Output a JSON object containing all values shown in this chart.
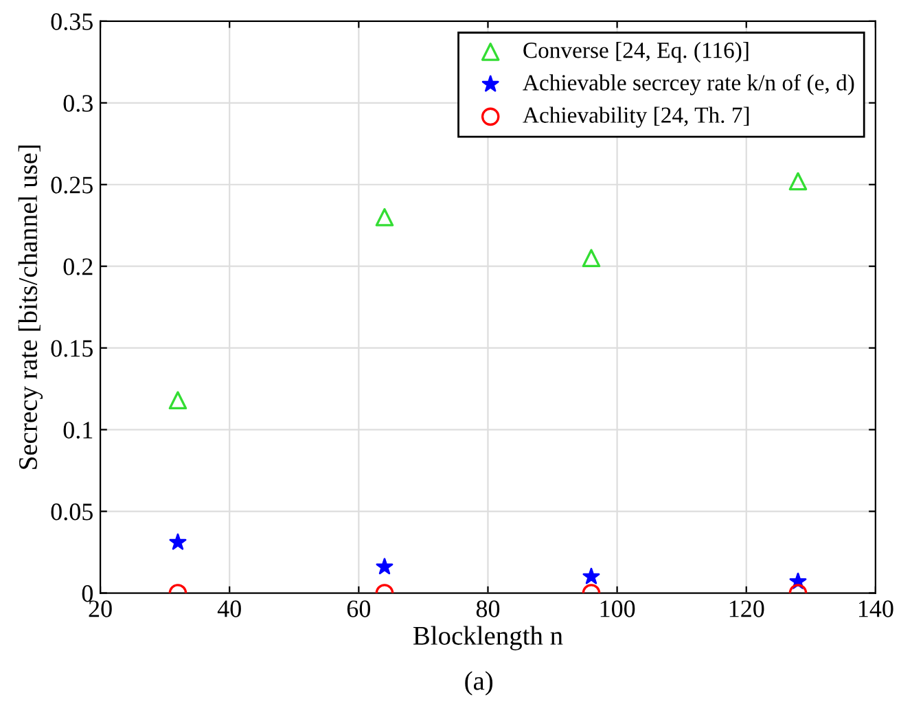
{
  "chart_data": {
    "type": "scatter",
    "xlabel": "Blocklength n",
    "ylabel": "Secrecy rate [bits/channel use]",
    "annotations": [
      "(a)"
    ],
    "x": [
      32,
      64,
      96,
      128
    ],
    "series": [
      {
        "name": "Converse [24, Eq. (116)]",
        "color": "#33dd33",
        "marker": "triangle",
        "values": [
          0.118,
          0.23,
          0.205,
          0.252
        ]
      },
      {
        "name": "Achievable secrcey rate k/n of (e, d)",
        "color": "#0000ff",
        "marker": "star",
        "values": [
          0.031,
          0.016,
          0.01,
          0.007
        ]
      },
      {
        "name": "Achievability [24, Th. 7]",
        "color": "#ff0000",
        "marker": "circle",
        "values": [
          0,
          0,
          0,
          0
        ]
      }
    ],
    "xlim": [
      20,
      140
    ],
    "xticks": [
      20,
      40,
      60,
      80,
      100,
      120,
      140
    ],
    "ylim": [
      0,
      0.35
    ],
    "yticks": [
      0,
      0.05,
      0.1,
      0.15,
      0.2,
      0.25,
      0.3,
      0.35
    ],
    "grid": true,
    "legend": "top right"
  }
}
